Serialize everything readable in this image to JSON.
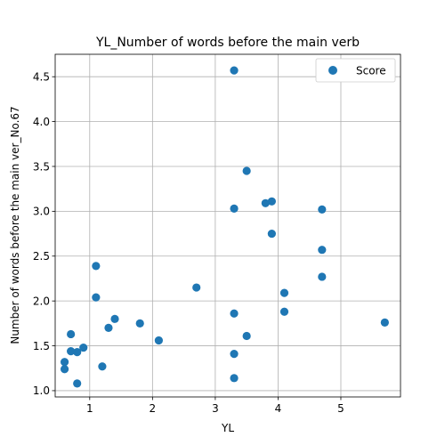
{
  "chart_data": {
    "type": "scatter",
    "title": "YL_Number of words before the main verb",
    "xlabel": "YL",
    "ylabel": "Number of words before the main ver_No.67",
    "xlim": [
      0.45,
      5.95
    ],
    "ylim": [
      0.93,
      4.75
    ],
    "xticks": [
      1,
      2,
      3,
      4,
      5
    ],
    "yticks": [
      1.0,
      1.5,
      2.0,
      2.5,
      3.0,
      3.5,
      4.0,
      4.5
    ],
    "grid": true,
    "legend_position": "top-right",
    "series": [
      {
        "name": "Score",
        "color": "#1f77b4",
        "points": [
          [
            0.6,
            1.32
          ],
          [
            0.6,
            1.24
          ],
          [
            0.7,
            1.63
          ],
          [
            0.7,
            1.44
          ],
          [
            0.8,
            1.43
          ],
          [
            0.8,
            1.08
          ],
          [
            0.9,
            1.48
          ],
          [
            1.1,
            2.39
          ],
          [
            1.1,
            2.04
          ],
          [
            1.2,
            1.27
          ],
          [
            1.3,
            1.7
          ],
          [
            1.4,
            1.8
          ],
          [
            1.8,
            1.75
          ],
          [
            2.1,
            1.56
          ],
          [
            2.7,
            2.15
          ],
          [
            3.3,
            4.57
          ],
          [
            3.3,
            3.03
          ],
          [
            3.3,
            1.86
          ],
          [
            3.3,
            1.41
          ],
          [
            3.3,
            1.14
          ],
          [
            3.5,
            3.45
          ],
          [
            3.5,
            1.61
          ],
          [
            3.8,
            3.09
          ],
          [
            3.9,
            3.11
          ],
          [
            3.9,
            2.75
          ],
          [
            4.1,
            2.09
          ],
          [
            4.1,
            1.88
          ],
          [
            4.7,
            3.02
          ],
          [
            4.7,
            2.57
          ],
          [
            4.7,
            2.27
          ],
          [
            5.7,
            1.76
          ]
        ]
      }
    ]
  }
}
